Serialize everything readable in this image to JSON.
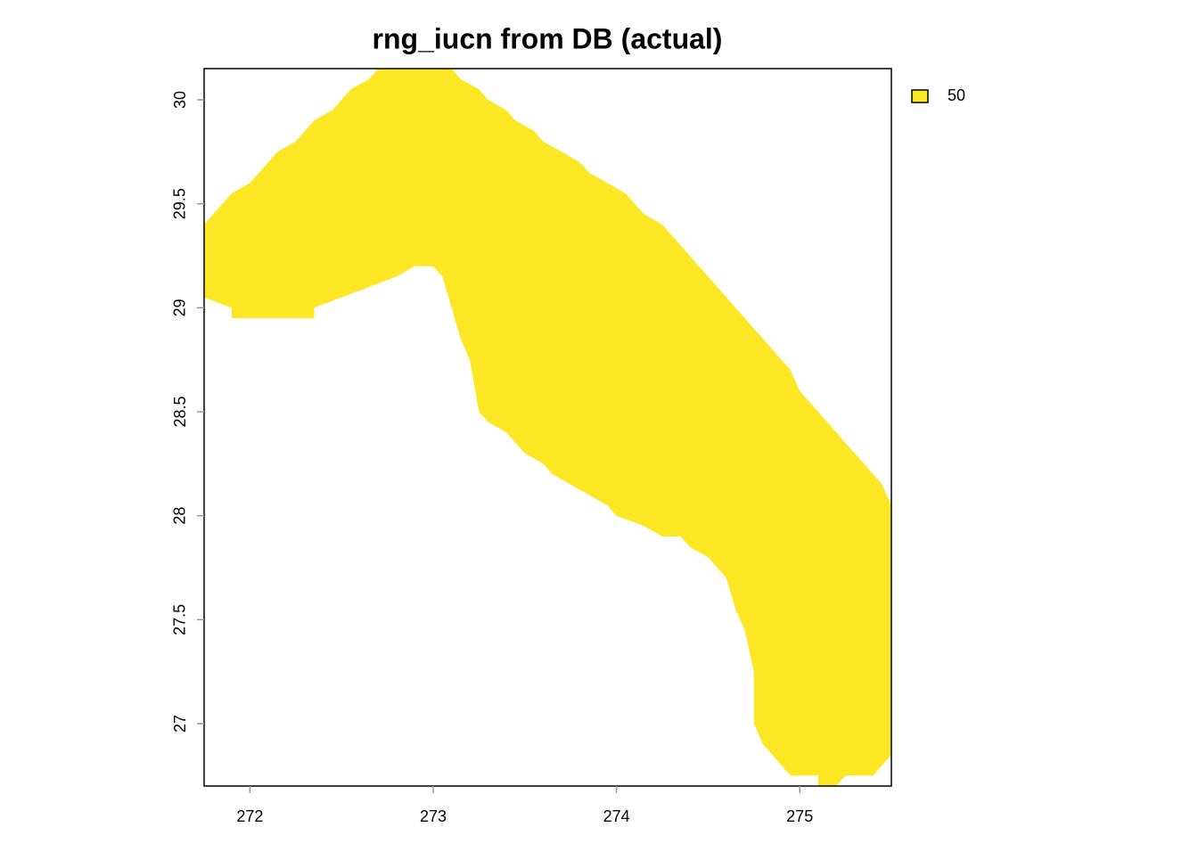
{
  "chart_data": {
    "type": "raster",
    "title": "rng_iucn from DB (actual)",
    "xlim": [
      271.75,
      275.5
    ],
    "ylim": [
      26.7,
      30.15
    ],
    "xticks": [
      272,
      273,
      274,
      275
    ],
    "yticks": [
      27,
      27.5,
      28,
      28.5,
      29,
      29.5,
      30
    ],
    "series": [
      {
        "name": "50",
        "color": "#FDE725",
        "x": [
          271.75,
          271.8,
          271.85,
          271.9,
          272,
          272.05,
          272.1,
          272.15,
          272.25,
          272.3,
          272.35,
          272.45,
          272.5,
          272.55,
          272.65,
          272.7,
          273.1,
          273.15,
          273.25,
          273.3,
          273.4,
          273.45,
          273.55,
          273.6,
          273.7,
          273.8,
          273.85,
          273.95,
          274.05,
          274.1,
          274.15,
          274.25,
          274.3,
          274.35,
          274.4,
          274.45,
          274.5,
          274.55,
          274.6,
          274.65,
          274.7,
          274.75,
          274.8,
          274.85,
          274.9,
          274.95,
          275,
          275.05,
          275.1,
          275.15,
          275.2,
          275.25,
          275.3,
          275.35,
          275.4,
          275.45,
          275.5,
          275.5,
          275.45,
          275.4,
          275.25,
          275.2,
          275.1,
          275.1,
          274.95,
          274.9,
          274.85,
          274.8,
          274.75,
          274.75,
          274.7,
          274.65,
          274.6,
          274.55,
          274.5,
          274.4,
          274.35,
          274.25,
          274.15,
          274,
          273.95,
          273.85,
          273.75,
          273.65,
          273.6,
          273.5,
          273.45,
          273.4,
          273.3,
          273.25,
          273.2,
          273.15,
          273.1,
          273.05,
          273,
          272.9,
          272.8,
          272.65,
          272.5,
          272.35,
          272.35,
          271.9,
          271.9,
          271.75
        ],
        "values": [
          29.4,
          29.45,
          29.5,
          29.55,
          29.6,
          29.65,
          29.7,
          29.75,
          29.8,
          29.85,
          29.9,
          29.95,
          30,
          30.05,
          30.1,
          30.15,
          30.15,
          30.1,
          30.05,
          30,
          29.95,
          29.9,
          29.85,
          29.8,
          29.75,
          29.7,
          29.65,
          29.6,
          29.55,
          29.5,
          29.45,
          29.4,
          29.35,
          29.3,
          29.25,
          29.2,
          29.15,
          29.1,
          29.05,
          29,
          28.95,
          28.9,
          28.85,
          28.8,
          28.75,
          28.7,
          28.6,
          28.55,
          28.5,
          28.45,
          28.4,
          28.35,
          28.3,
          28.25,
          28.2,
          28.15,
          28.05,
          26.85,
          26.8,
          26.75,
          26.75,
          26.7,
          26.7,
          26.75,
          26.75,
          26.8,
          26.85,
          26.9,
          27,
          27.25,
          27.45,
          27.55,
          27.7,
          27.75,
          27.8,
          27.85,
          27.9,
          27.9,
          27.95,
          28,
          28.05,
          28.1,
          28.15,
          28.2,
          28.25,
          28.3,
          28.35,
          28.4,
          28.45,
          28.5,
          28.75,
          28.85,
          29,
          29.15,
          29.2,
          29.2,
          29.15,
          29.1,
          29.05,
          29,
          28.95,
          28.95,
          29,
          29.05
        ]
      }
    ]
  }
}
